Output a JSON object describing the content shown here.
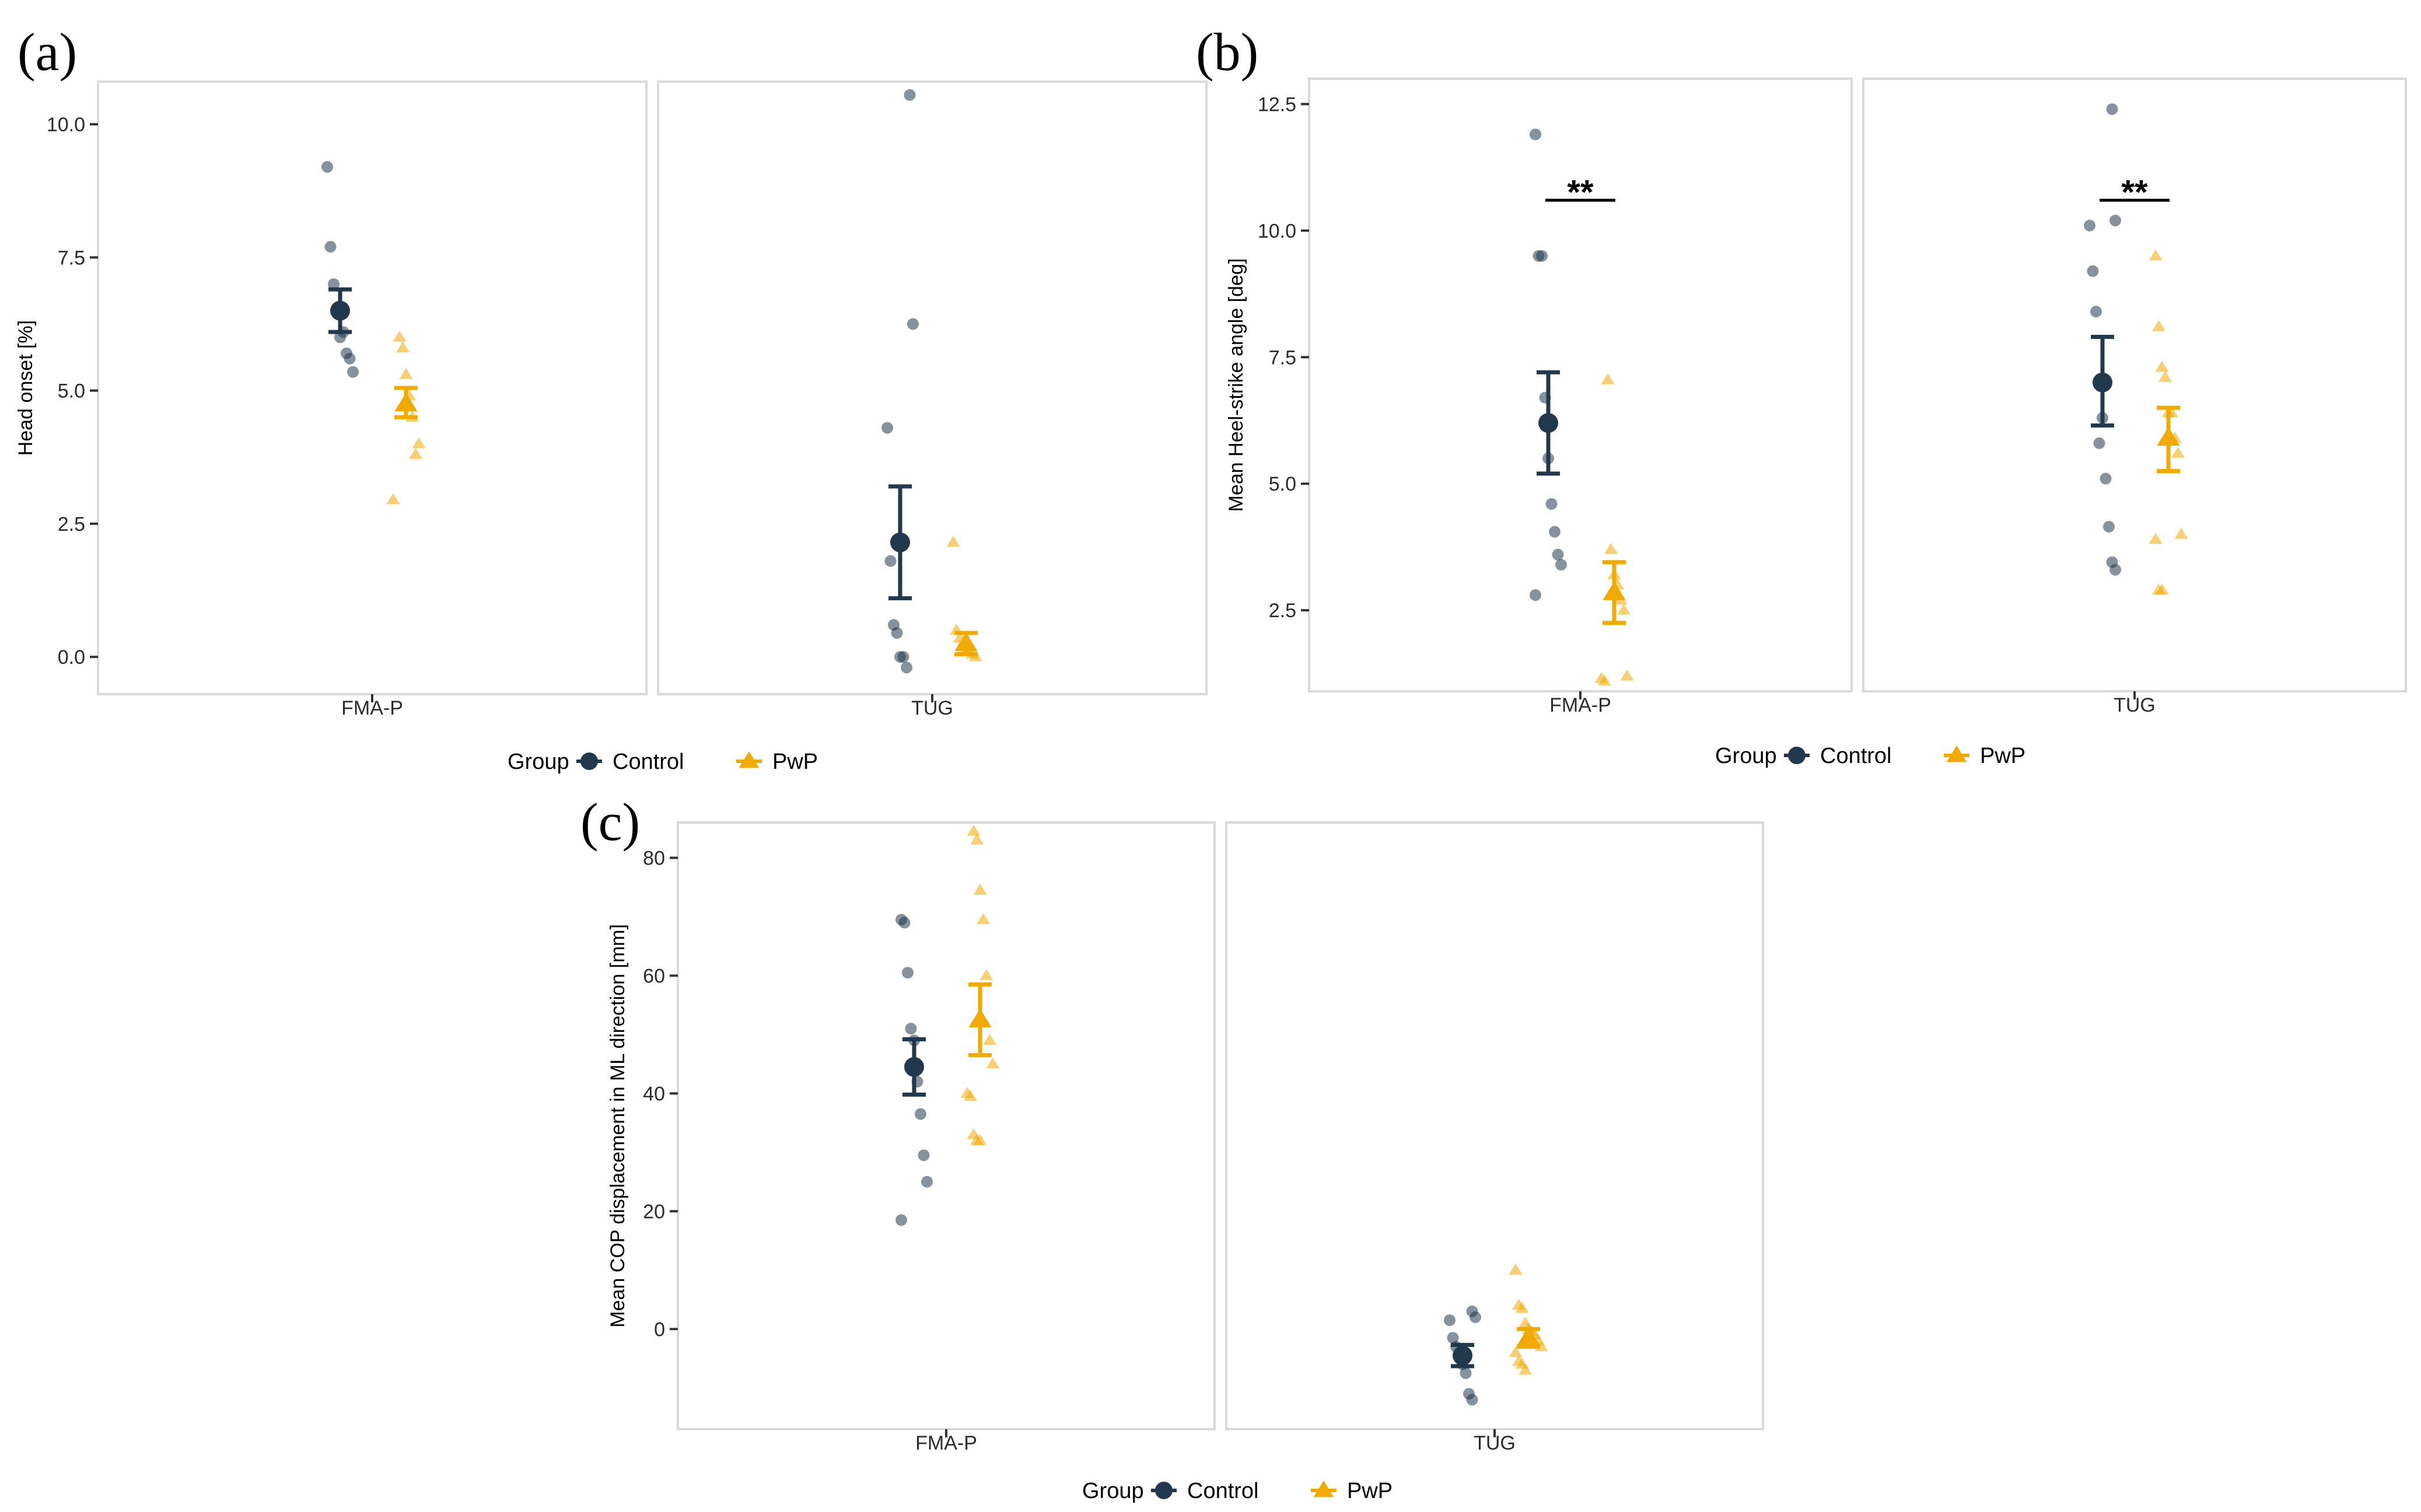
{
  "colors": {
    "control": "#22384d",
    "pwp": "#f0aa00",
    "frame": "#d9d9d9"
  },
  "chart_data": [
    {
      "type": "scatter",
      "panel_label": "(a)",
      "ylabel": "Head onset [%]",
      "ylim": [
        -0.7,
        10.8
      ],
      "yticks": [
        0.0,
        2.5,
        5.0,
        7.5,
        10.0
      ],
      "ytick_labels": [
        "0.0",
        "2.5",
        "5.0",
        "7.5",
        "10.0"
      ],
      "facets": [
        "FMA-P",
        "TUG"
      ],
      "legend": {
        "title": "Group",
        "items": [
          "Control",
          "PwP"
        ],
        "position": "bottom"
      },
      "significance": [],
      "series": [
        {
          "name": "Control",
          "means": [
            6.5,
            2.15
          ],
          "errors": [
            [
              6.1,
              6.9
            ],
            [
              1.1,
              3.2
            ]
          ],
          "points": [
            [
              9.2,
              7.7,
              7.0,
              6.5,
              6.0,
              6.1,
              5.7,
              5.6,
              5.35
            ],
            [
              10.55,
              6.25,
              4.3,
              1.8,
              0.6,
              0.45,
              0.0,
              0.0,
              -0.2
            ]
          ]
        },
        {
          "name": "PwP",
          "means": [
            4.75,
            0.25
          ],
          "errors": [
            [
              4.5,
              5.05
            ],
            [
              0.05,
              0.45
            ]
          ],
          "points": [
            [
              6.0,
              5.8,
              5.3,
              4.9,
              4.5,
              3.8,
              4.0,
              2.95
            ],
            [
              2.15,
              0.5,
              0.35,
              0.25,
              0.15,
              0.1,
              0.05,
              0.0
            ]
          ]
        }
      ]
    },
    {
      "type": "scatter",
      "panel_label": "(b)",
      "ylabel": "Mean Heel-strike angle [deg]",
      "ylim": [
        0.9,
        13.0
      ],
      "yticks": [
        2.5,
        5.0,
        7.5,
        10.0,
        12.5
      ],
      "ytick_labels": [
        "2.5",
        "5.0",
        "7.5",
        "10.0",
        "12.5"
      ],
      "facets": [
        "FMA-P",
        "TUG"
      ],
      "legend": {
        "title": "Group",
        "items": [
          "Control",
          "PwP"
        ],
        "position": "bottom"
      },
      "significance": [
        {
          "facet": 0,
          "y": 10.6,
          "label": "**"
        },
        {
          "facet": 1,
          "y": 10.6,
          "label": "**"
        }
      ],
      "series": [
        {
          "name": "Control",
          "means": [
            6.2,
            7.0
          ],
          "errors": [
            [
              5.2,
              7.2
            ],
            [
              6.15,
              7.9
            ]
          ],
          "points": [
            [
              11.9,
              9.5,
              9.5,
              6.7,
              5.5,
              4.6,
              4.05,
              3.6,
              3.4,
              2.8
            ],
            [
              12.4,
              10.2,
              10.1,
              9.2,
              8.4,
              5.8,
              6.3,
              5.1,
              4.15,
              3.45,
              3.3
            ]
          ]
        },
        {
          "name": "PwP",
          "means": [
            2.85,
            5.9
          ],
          "errors": [
            [
              2.25,
              3.45
            ],
            [
              5.25,
              6.5
            ]
          ],
          "points": [
            [
              7.05,
              3.7,
              3.2,
              3.0,
              2.7,
              2.5,
              1.2,
              1.15,
              1.1
            ],
            [
              9.5,
              8.1,
              7.3,
              7.1,
              6.4,
              6.4,
              5.9,
              5.6,
              4.0,
              3.9,
              2.9,
              2.9
            ]
          ]
        }
      ]
    },
    {
      "type": "scatter",
      "panel_label": "(c)",
      "ylabel": "Mean COP displacement in ML direction [mm]",
      "ylim": [
        -17,
        86
      ],
      "yticks": [
        0,
        20,
        40,
        60,
        80
      ],
      "ytick_labels": [
        "0",
        "20",
        "40",
        "60",
        "80"
      ],
      "facets": [
        "FMA-P",
        "TUG"
      ],
      "legend": {
        "title": "Group",
        "items": [
          "Control",
          "PwP"
        ],
        "position": "bottom"
      },
      "significance": [],
      "series": [
        {
          "name": "Control",
          "means": [
            44.5,
            -4.5
          ],
          "errors": [
            [
              39.8,
              49.2
            ],
            [
              -6.3,
              -2.7
            ]
          ],
          "points": [
            [
              69.5,
              69.0,
              60.5,
              51.0,
              49.0,
              42.0,
              36.5,
              29.5,
              25.0,
              18.5
            ],
            [
              3.0,
              2.0,
              1.5,
              -1.5,
              -3.0,
              -4.5,
              -6.0,
              -7.5,
              -11.0,
              -12.0
            ]
          ]
        },
        {
          "name": "PwP",
          "means": [
            52.5,
            -1.5
          ],
          "errors": [
            [
              46.5,
              58.5
            ],
            [
              -3.0,
              0.0
            ]
          ],
          "points": [
            [
              84.5,
              83.0,
              74.5,
              69.5,
              60.0,
              49.0,
              45.0,
              40.0,
              39.5,
              33.0,
              32.0,
              32.0
            ],
            [
              10.0,
              4.0,
              3.5,
              1.0,
              0.0,
              -0.5,
              -1.0,
              -2.0,
              -3.0,
              -4.0,
              -5.5,
              -6.0,
              -7.0
            ]
          ]
        }
      ]
    }
  ]
}
